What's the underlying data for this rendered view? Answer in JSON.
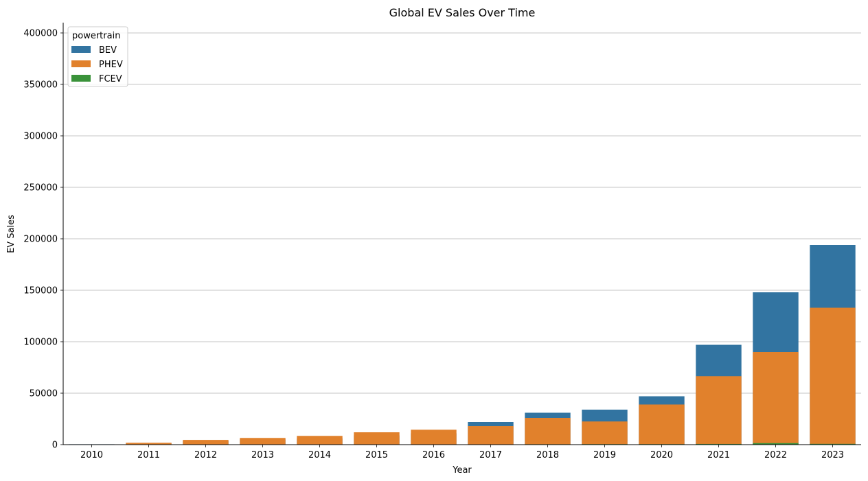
{
  "chart_data": {
    "type": "bar",
    "title": "Global EV Sales Over Time",
    "xlabel": "Year",
    "ylabel": "EV Sales",
    "categories": [
      "2010",
      "2011",
      "2012",
      "2013",
      "2014",
      "2015",
      "2016",
      "2017",
      "2018",
      "2019",
      "2020",
      "2021",
      "2022",
      "2023"
    ],
    "ylim": [
      0,
      410000
    ],
    "yticks": [
      0,
      50000,
      100000,
      150000,
      200000,
      250000,
      300000,
      350000,
      400000
    ],
    "grid": "horizontal",
    "legend": {
      "title": "powertrain",
      "placement": "top-left"
    },
    "series": [
      {
        "name": "BEV",
        "color": "#3274a1",
        "values": [
          400,
          1500,
          3300,
          5000,
          6000,
          9000,
          11000,
          22000,
          31000,
          34000,
          47000,
          97000,
          148000,
          194000
        ]
      },
      {
        "name": "PHEV",
        "color": "#e1812c",
        "values": [
          200,
          1800,
          4600,
          6500,
          8500,
          12000,
          14500,
          18000,
          26000,
          22500,
          39000,
          66500,
          90000,
          133000
        ]
      },
      {
        "name": "FCEV",
        "color": "#3a923a",
        "values": [
          0,
          0,
          0,
          0,
          0,
          0,
          200,
          300,
          400,
          500,
          500,
          700,
          1500,
          800
        ]
      }
    ]
  }
}
